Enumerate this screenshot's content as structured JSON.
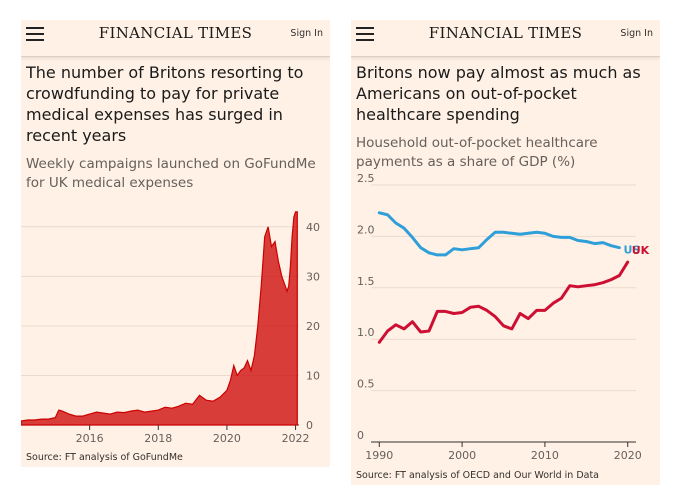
{
  "header": {
    "masthead": "FINANCIAL TIMES",
    "signin": "Sign In"
  },
  "colors": {
    "background": "#fff1e5",
    "area": "#cc0000",
    "us": "#2e9fd8",
    "uk": "#cc0f33",
    "grid": "#e9dccf"
  },
  "left": {
    "title": "The number of Britons resorting to crowdfunding to pay for private medical expenses has surged in recent years",
    "subtitle": "Weekly campaigns launched on GoFundMe for UK medical expenses",
    "source": "Source: FT analysis of GoFundMe"
  },
  "right": {
    "title": "Britons now pay almost as much as Americans on out-of-pocket healthcare spending",
    "subtitle": "Household out-of-pocket healthcare payments as a share of GDP (%)",
    "source": "Source: FT analysis of OECD and Our World in Data"
  },
  "chart_data": [
    {
      "type": "area",
      "title": "Weekly campaigns launched on GoFundMe for UK medical expenses",
      "x_ticks": [
        "2016",
        "2018",
        "2020",
        "2022"
      ],
      "x_tick_values": [
        2016,
        2018,
        2020,
        2022
      ],
      "y_ticks": [
        "0",
        "10",
        "20",
        "30",
        "40"
      ],
      "xlim": [
        2014,
        2022.1
      ],
      "ylim": [
        0,
        45
      ],
      "series": [
        {
          "name": "Weekly campaigns",
          "x": [
            2014.0,
            2014.2,
            2014.4,
            2014.6,
            2014.8,
            2015.0,
            2015.1,
            2015.2,
            2015.4,
            2015.6,
            2015.8,
            2016.0,
            2016.2,
            2016.4,
            2016.6,
            2016.8,
            2017.0,
            2017.2,
            2017.4,
            2017.6,
            2017.8,
            2018.0,
            2018.2,
            2018.4,
            2018.6,
            2018.8,
            2019.0,
            2019.2,
            2019.4,
            2019.6,
            2019.8,
            2020.0,
            2020.1,
            2020.2,
            2020.3,
            2020.4,
            2020.5,
            2020.6,
            2020.7,
            2020.8,
            2020.9,
            2021.0,
            2021.1,
            2021.2,
            2021.3,
            2021.4,
            2021.5,
            2021.6,
            2021.7,
            2021.75,
            2021.8,
            2021.85,
            2021.9,
            2021.95,
            2022.0,
            2022.05
          ],
          "values": [
            0.8,
            1.0,
            1.0,
            1.2,
            1.2,
            1.5,
            3.0,
            2.8,
            2.2,
            1.8,
            1.8,
            2.2,
            2.6,
            2.4,
            2.2,
            2.6,
            2.5,
            2.8,
            3.0,
            2.6,
            2.8,
            3.0,
            3.6,
            3.4,
            3.8,
            4.4,
            4.2,
            6.0,
            5.0,
            4.8,
            5.6,
            7.0,
            9.0,
            12.0,
            10.0,
            11.0,
            11.5,
            13.0,
            11.0,
            14.0,
            20.0,
            28.0,
            38.0,
            40.0,
            36.0,
            37.0,
            33.0,
            30.0,
            28.0,
            27.0,
            28.0,
            32.0,
            38.0,
            42.0,
            43.0,
            43.0
          ]
        }
      ]
    },
    {
      "type": "line",
      "title": "Household out-of-pocket healthcare payments as a share of GDP (%)",
      "x_ticks": [
        "1990",
        "2000",
        "2010",
        "2020"
      ],
      "x_tick_values": [
        1990,
        2000,
        2010,
        2020
      ],
      "y_ticks": [
        "0",
        "0.5",
        "1.0",
        "1.5",
        "2.0",
        "2.5"
      ],
      "y_tick_values": [
        0,
        0.5,
        1.0,
        1.5,
        2.0,
        2.5
      ],
      "xlim": [
        1989,
        2021
      ],
      "ylim": [
        0,
        2.5
      ],
      "series": [
        {
          "name": "US",
          "x": [
            1990,
            1991,
            1992,
            1993,
            1994,
            1995,
            1996,
            1997,
            1998,
            1999,
            2000,
            2001,
            2002,
            2003,
            2004,
            2005,
            2006,
            2007,
            2008,
            2009,
            2010,
            2011,
            2012,
            2013,
            2014,
            2015,
            2016,
            2017,
            2018,
            2019
          ],
          "values": [
            2.23,
            2.21,
            2.13,
            2.08,
            1.99,
            1.89,
            1.84,
            1.82,
            1.82,
            1.88,
            1.87,
            1.88,
            1.89,
            1.97,
            2.04,
            2.04,
            2.03,
            2.02,
            2.03,
            2.04,
            2.03,
            2.0,
            1.99,
            1.99,
            1.96,
            1.95,
            1.93,
            1.94,
            1.91,
            1.89
          ]
        },
        {
          "name": "UK",
          "x": [
            1990,
            1991,
            1992,
            1993,
            1994,
            1995,
            1996,
            1997,
            1998,
            1999,
            2000,
            2001,
            2002,
            2003,
            2004,
            2005,
            2006,
            2007,
            2008,
            2009,
            2010,
            2011,
            2012,
            2013,
            2014,
            2015,
            2016,
            2017,
            2018,
            2019,
            2020
          ],
          "values": [
            0.97,
            1.08,
            1.14,
            1.1,
            1.17,
            1.07,
            1.08,
            1.27,
            1.27,
            1.25,
            1.26,
            1.31,
            1.32,
            1.28,
            1.22,
            1.13,
            1.1,
            1.25,
            1.2,
            1.28,
            1.28,
            1.35,
            1.4,
            1.52,
            1.51,
            1.52,
            1.53,
            1.55,
            1.58,
            1.62,
            1.75
          ]
        }
      ]
    }
  ]
}
